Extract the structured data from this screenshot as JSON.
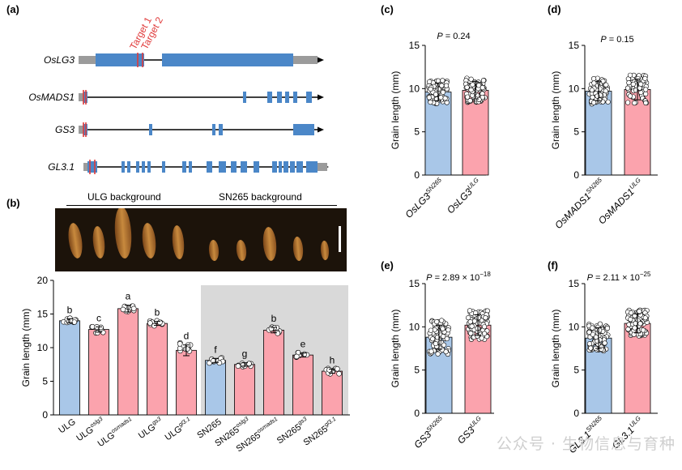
{
  "panels": {
    "a": "(a)",
    "b": "(b)",
    "c": "(c)",
    "d": "(d)",
    "e": "(e)",
    "f": "(f)"
  },
  "colors": {
    "blue": "#a9c7e8",
    "pink": "#fba3ad",
    "gene_blue": "#4b87c8",
    "utr": "#9b9b9b",
    "target": "#e03a3a",
    "shade": "#d9d9d9"
  },
  "gene_structures": {
    "genes": [
      {
        "name": "OsLG3"
      },
      {
        "name": "OsMADS1"
      },
      {
        "name": "GS3"
      },
      {
        "name": "GL3.1"
      }
    ],
    "targets": [
      "Target 1",
      "Target 2"
    ]
  },
  "photo": {
    "ulg_label": "ULG background",
    "sn_label": "SN265 background"
  },
  "chart_data": [
    {
      "id": "b",
      "type": "bar",
      "ylabel": "Grain length (mm)",
      "ylim": [
        0,
        20
      ],
      "yticks": [
        0,
        5,
        10,
        15,
        20
      ],
      "categories": [
        {
          "base": "ULG",
          "sup": ""
        },
        {
          "base": "ULG",
          "sup": "oslg3"
        },
        {
          "base": "ULG",
          "sup": "osmads1"
        },
        {
          "base": "ULG",
          "sup": "gs3"
        },
        {
          "base": "ULG",
          "sup": "gl3.1"
        },
        {
          "base": "SN265",
          "sup": ""
        },
        {
          "base": "SN265",
          "sup": "oslg3"
        },
        {
          "base": "SN265",
          "sup": "osmads1"
        },
        {
          "base": "SN265",
          "sup": "gs3"
        },
        {
          "base": "SN265",
          "sup": "gl3.1"
        }
      ],
      "values": [
        14.0,
        12.7,
        15.8,
        13.6,
        9.6,
        8.1,
        7.5,
        12.6,
        8.9,
        6.5
      ],
      "errors": [
        0.3,
        0.4,
        0.5,
        0.3,
        0.8,
        0.3,
        0.25,
        0.4,
        0.3,
        0.3
      ],
      "letters": [
        "b",
        "c",
        "a",
        "b",
        "d",
        "f",
        "g",
        "b",
        "e",
        "h"
      ],
      "bar_colors": [
        "blue",
        "pink",
        "pink",
        "pink",
        "pink",
        "blue",
        "pink",
        "pink",
        "pink",
        "pink"
      ]
    },
    {
      "id": "c",
      "type": "bar",
      "ylabel": "Grain length (mm)",
      "ylim": [
        0,
        15
      ],
      "yticks": [
        0,
        5,
        10,
        15
      ],
      "p_value": "P = 0.24",
      "categories": [
        {
          "base": "OsLG3",
          "sup": "SN265"
        },
        {
          "base": "OsLG3",
          "sup": "ULG"
        }
      ],
      "values": [
        9.6,
        9.8
      ],
      "errors": [
        1.0,
        1.0
      ]
    },
    {
      "id": "d",
      "type": "bar",
      "ylabel": "Grain length (mm)",
      "ylim": [
        0,
        15
      ],
      "yticks": [
        0,
        5,
        10,
        15
      ],
      "p_value": "P = 0.15",
      "categories": [
        {
          "base": "OsMADS1",
          "sup": "SN265"
        },
        {
          "base": "OsMADS1",
          "sup": "ULG"
        }
      ],
      "values": [
        9.7,
        9.9
      ],
      "errors": [
        1.1,
        1.2
      ]
    },
    {
      "id": "e",
      "type": "bar",
      "ylabel": "Grain length (mm)",
      "ylim": [
        0,
        15
      ],
      "yticks": [
        0,
        5,
        10,
        15
      ],
      "p_value": "P = 2.89 × 10",
      "p_exp": "−18",
      "categories": [
        {
          "base": "GS3",
          "sup": "SN265"
        },
        {
          "base": "GS3",
          "sup": "ULG"
        }
      ],
      "values": [
        8.8,
        10.2
      ],
      "errors": [
        1.4,
        1.2
      ]
    },
    {
      "id": "f",
      "type": "bar",
      "ylabel": "Grain length (mm)",
      "ylim": [
        0,
        15
      ],
      "yticks": [
        0,
        5,
        10,
        15
      ],
      "p_value": "P = 2.11 × 10",
      "p_exp": "−25",
      "categories": [
        {
          "base": "GL3.1",
          "sup": "SN265"
        },
        {
          "base": "GL3.1",
          "sup": "ULG"
        }
      ],
      "values": [
        8.7,
        10.4
      ],
      "errors": [
        1.2,
        1.1
      ]
    }
  ],
  "watermark": "公众号 · 生物信息与育种"
}
